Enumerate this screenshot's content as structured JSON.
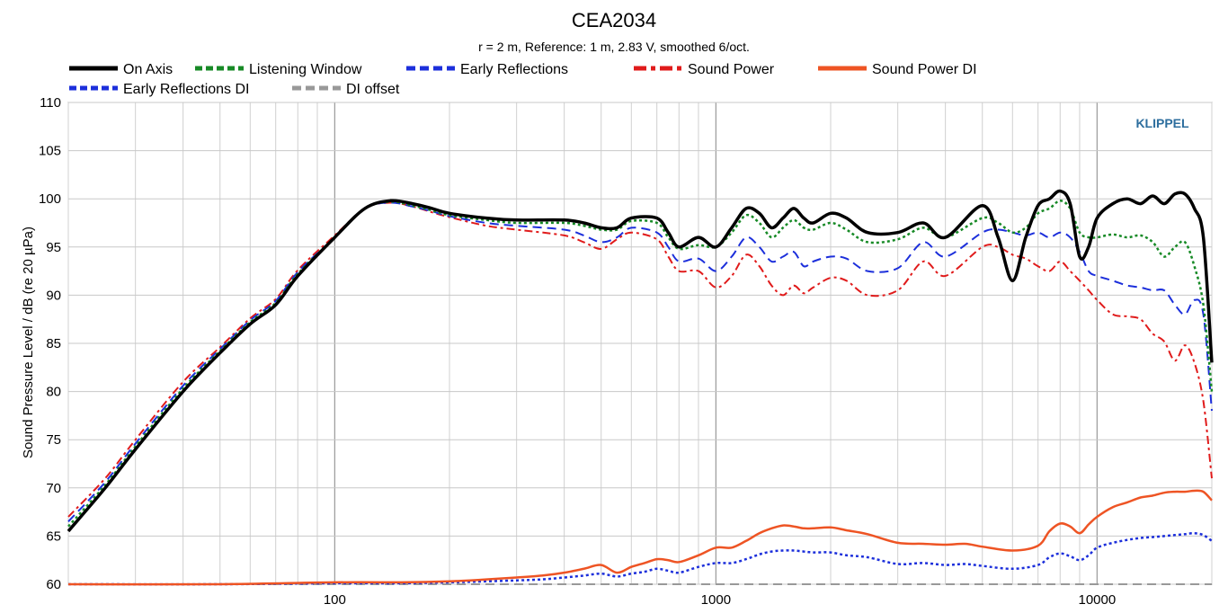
{
  "title": "CEA2034",
  "subtitle": "r = 2 m,  Reference: 1 m, 2.83 V, smoothed 6/oct.",
  "watermark": "KLIPPEL",
  "chart_data": {
    "type": "line",
    "xscale": "log",
    "xlim": [
      20,
      20000
    ],
    "ylim": [
      60,
      110
    ],
    "xlabel": "",
    "ylabel": "Sound Pressure Level / dB (re 20 µPa)",
    "x_ticks": [
      100,
      1000,
      10000
    ],
    "x_tick_labels": [
      "100",
      "1000",
      "10000"
    ],
    "y_ticks": [
      60,
      65,
      70,
      75,
      80,
      85,
      90,
      95,
      100,
      105,
      110
    ],
    "y_tick_labels": [
      "60",
      "65",
      "70",
      "75",
      "80",
      "85",
      "90",
      "95",
      "100",
      "105",
      "110"
    ],
    "grid": true,
    "legend_position": "top",
    "series": [
      {
        "name": "On Axis",
        "color": "#000000",
        "style": "solid",
        "width": 3.5,
        "x": [
          20,
          25,
          30,
          40,
          50,
          60,
          70,
          80,
          100,
          120,
          140,
          160,
          180,
          200,
          250,
          300,
          400,
          450,
          500,
          550,
          600,
          700,
          750,
          800,
          900,
          1000,
          1100,
          1200,
          1300,
          1400,
          1500,
          1600,
          1700,
          1800,
          2000,
          2200,
          2500,
          3000,
          3500,
          4000,
          5000,
          5500,
          6000,
          6500,
          7000,
          7500,
          8000,
          8500,
          9000,
          9500,
          10000,
          11000,
          12000,
          13000,
          14000,
          15000,
          16000,
          17000,
          18000,
          19000,
          20000
        ],
        "y": [
          65.5,
          70,
          74,
          80,
          84,
          87,
          89,
          92,
          96,
          99,
          99.8,
          99.5,
          99,
          98.5,
          98,
          97.8,
          97.8,
          97.5,
          97,
          97,
          98,
          98,
          96.5,
          95,
          96,
          95,
          97,
          99,
          98.5,
          97,
          98,
          99,
          98,
          97.5,
          98.5,
          98,
          96.5,
          96.5,
          97.5,
          96,
          99.3,
          96,
          91.5,
          96,
          99.3,
          100,
          100.8,
          99.5,
          94,
          95,
          98,
          99.5,
          100,
          99.5,
          100.3,
          99.5,
          100.5,
          100.5,
          99,
          96,
          83
        ]
      },
      {
        "name": "Listening Window",
        "color": "#178a26",
        "style": "dot",
        "width": 2.5,
        "x": [
          20,
          25,
          30,
          40,
          50,
          60,
          70,
          80,
          100,
          120,
          140,
          160,
          180,
          200,
          250,
          300,
          400,
          450,
          500,
          550,
          600,
          700,
          750,
          800,
          900,
          1000,
          1100,
          1200,
          1300,
          1400,
          1500,
          1600,
          1700,
          1800,
          2000,
          2200,
          2500,
          3000,
          3500,
          4000,
          5000,
          5500,
          6000,
          6500,
          7000,
          7500,
          8000,
          8500,
          9000,
          9500,
          10000,
          11000,
          12000,
          13000,
          14000,
          15000,
          16000,
          17000,
          18000,
          19000,
          20000
        ],
        "y": [
          66,
          70.3,
          74.3,
          80.3,
          84.2,
          87.2,
          89.2,
          92.2,
          96,
          99,
          99.7,
          99.3,
          98.8,
          98.3,
          97.8,
          97.5,
          97.5,
          97.2,
          96.8,
          96.8,
          97.7,
          97.5,
          96,
          94.8,
          95.2,
          95,
          96.5,
          98.3,
          97.5,
          96,
          97,
          97.8,
          97,
          96.8,
          97.5,
          96.8,
          95.5,
          95.8,
          97,
          96,
          98,
          97.5,
          96.5,
          97,
          98.5,
          99,
          99.8,
          99,
          96.5,
          96,
          96,
          96.3,
          96,
          96.2,
          95.5,
          94,
          95,
          95.5,
          93,
          89,
          80
        ]
      },
      {
        "name": "Early Reflections",
        "color": "#1c2fdb",
        "style": "dash",
        "width": 2,
        "x": [
          20,
          25,
          30,
          40,
          50,
          60,
          70,
          80,
          100,
          120,
          140,
          160,
          180,
          200,
          250,
          300,
          400,
          450,
          500,
          550,
          600,
          700,
          750,
          800,
          900,
          1000,
          1100,
          1200,
          1300,
          1400,
          1500,
          1600,
          1700,
          1800,
          2000,
          2200,
          2500,
          3000,
          3500,
          4000,
          5000,
          5500,
          6000,
          6500,
          7000,
          7500,
          8000,
          8500,
          9000,
          9500,
          10000,
          11000,
          12000,
          13000,
          14000,
          15000,
          16000,
          17000,
          18000,
          19000,
          20000
        ],
        "y": [
          66.5,
          70.6,
          74.6,
          80.6,
          84.4,
          87.4,
          89.4,
          92.4,
          96,
          99,
          99.6,
          99.2,
          98.7,
          98.2,
          97.5,
          97.2,
          96.8,
          96.2,
          95.5,
          96,
          97,
          96.5,
          95,
          93.5,
          93.8,
          92.5,
          94,
          96,
          95,
          93.5,
          94,
          94.5,
          93,
          93.5,
          94,
          93.8,
          92.5,
          92.8,
          95.5,
          94,
          96.5,
          96.8,
          96.5,
          96.2,
          96.5,
          96,
          96.5,
          96,
          94.5,
          92.5,
          92,
          91.5,
          91,
          90.8,
          90.5,
          90.5,
          89,
          88,
          89.5,
          88,
          78
        ]
      },
      {
        "name": "Sound Power",
        "color": "#e01b1b",
        "style": "dashdot",
        "width": 2,
        "x": [
          20,
          25,
          30,
          40,
          50,
          60,
          70,
          80,
          100,
          120,
          140,
          160,
          180,
          200,
          250,
          300,
          400,
          450,
          500,
          550,
          600,
          700,
          750,
          800,
          900,
          1000,
          1100,
          1200,
          1300,
          1400,
          1500,
          1600,
          1700,
          1800,
          2000,
          2200,
          2500,
          3000,
          3500,
          4000,
          5000,
          5500,
          6000,
          6500,
          7000,
          7500,
          8000,
          8500,
          9000,
          9500,
          10000,
          11000,
          12000,
          13000,
          14000,
          15000,
          16000,
          17000,
          18000,
          19000,
          20000
        ],
        "y": [
          67,
          71,
          75,
          81,
          84.6,
          87.6,
          89.6,
          92.6,
          96.2,
          99,
          99.6,
          99.2,
          98.6,
          98.1,
          97.2,
          96.8,
          96.2,
          95.5,
          94.8,
          95.8,
          96.5,
          95.8,
          94,
          92.5,
          92.5,
          90.8,
          92,
          94.2,
          93,
          91,
          90,
          91,
          90.2,
          90.8,
          91.8,
          91.5,
          90,
          90.5,
          93.5,
          92,
          95,
          95,
          94.2,
          93.8,
          93,
          92.5,
          93.5,
          92.5,
          91.5,
          90.5,
          89.5,
          88,
          87.8,
          87.5,
          86,
          85.2,
          83.2,
          84.8,
          83,
          79,
          71
        ]
      },
      {
        "name": "Sound Power DI",
        "color": "#ee5424",
        "style": "solid",
        "width": 2.5,
        "x": [
          20,
          50,
          100,
          150,
          200,
          250,
          300,
          350,
          400,
          450,
          500,
          550,
          600,
          650,
          700,
          750,
          800,
          900,
          1000,
          1100,
          1200,
          1300,
          1400,
          1500,
          1600,
          1700,
          1800,
          2000,
          2200,
          2500,
          3000,
          3500,
          4000,
          4500,
          5000,
          6000,
          7000,
          7500,
          8000,
          8500,
          9000,
          9500,
          10000,
          11000,
          12000,
          13000,
          14000,
          15000,
          16000,
          17000,
          18000,
          19000,
          20000
        ],
        "y": [
          60,
          60,
          60.2,
          60.2,
          60.3,
          60.5,
          60.7,
          60.9,
          61.2,
          61.6,
          62,
          61.2,
          61.8,
          62.2,
          62.6,
          62.5,
          62.3,
          63,
          63.8,
          63.8,
          64.5,
          65.3,
          65.8,
          66.1,
          66,
          65.8,
          65.8,
          65.9,
          65.6,
          65.2,
          64.3,
          64.2,
          64.1,
          64.2,
          63.9,
          63.5,
          64,
          65.5,
          66.3,
          66,
          65.3,
          66.2,
          67,
          68,
          68.5,
          69,
          69.2,
          69.5,
          69.6,
          69.6,
          69.7,
          69.6,
          68.7
        ]
      },
      {
        "name": "Early Reflections DI",
        "color": "#1c2fdb",
        "style": "dot",
        "width": 2.5,
        "x": [
          20,
          50,
          100,
          150,
          200,
          250,
          300,
          350,
          400,
          450,
          500,
          550,
          600,
          650,
          700,
          750,
          800,
          900,
          1000,
          1100,
          1200,
          1300,
          1400,
          1500,
          1600,
          1700,
          1800,
          2000,
          2200,
          2500,
          3000,
          3500,
          4000,
          4500,
          5000,
          6000,
          7000,
          7500,
          8000,
          8500,
          9000,
          9500,
          10000,
          11000,
          12000,
          13000,
          14000,
          15000,
          16000,
          17000,
          18000,
          19000,
          20000
        ],
        "y": [
          60,
          60,
          60.1,
          60.1,
          60.2,
          60.3,
          60.4,
          60.5,
          60.7,
          60.9,
          61.1,
          60.8,
          61.1,
          61.3,
          61.6,
          61.4,
          61.2,
          61.8,
          62.2,
          62.2,
          62.6,
          63.1,
          63.4,
          63.5,
          63.5,
          63.4,
          63.3,
          63.3,
          63,
          62.8,
          62.1,
          62.2,
          62,
          62.1,
          61.9,
          61.6,
          62,
          62.8,
          63.2,
          62.9,
          62.5,
          63,
          63.8,
          64.3,
          64.6,
          64.8,
          64.9,
          65,
          65.1,
          65.2,
          65.3,
          65.1,
          64.5
        ]
      },
      {
        "name": "DI offset",
        "color": "#999999",
        "style": "dash",
        "width": 2,
        "x": [
          20,
          20000
        ],
        "y": [
          60,
          60
        ]
      }
    ]
  }
}
